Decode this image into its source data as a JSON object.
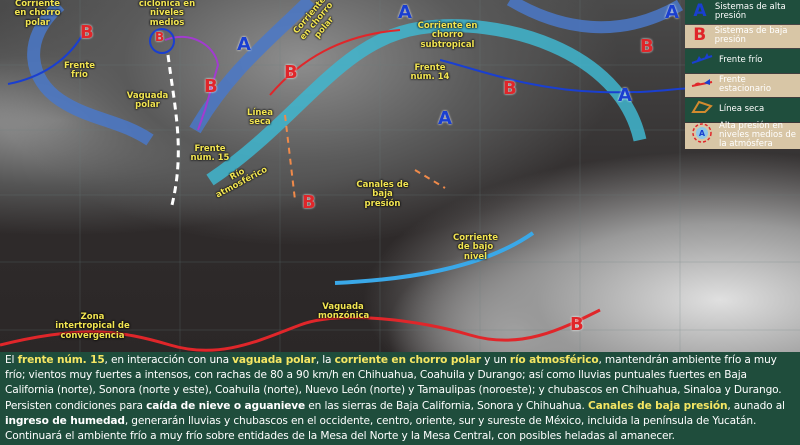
{
  "map_labels": {
    "corriente_chorro_polar_left": "Corriente en chorro polar",
    "frente_frio": "Frente frío",
    "vaguada_ciclonica": "ciclónica en niveles medios",
    "vaguada_polar": "Vaguada polar",
    "frente_15": "Frente núm. 15",
    "rio_atmosferico": "Río atmosférico",
    "linea_seca": "Línea seca",
    "corriente_chorro_polar_mid": "Corriente en chorro polar",
    "corriente_subtropical": "Corriente en chorro subtropical",
    "frente_14": "Frente núm. 14",
    "canales": "Canales de baja presión",
    "corriente_bajo_nivel": "Corriente de bajo nivel",
    "zona_intertropical": "Zona intertropical de convergencia",
    "vaguada_monzonica": "Vaguada monzónica",
    "high": "A",
    "low": "B"
  },
  "legend": [
    {
      "icon": "A",
      "label": "Sistemas de alta presión",
      "bg": "green"
    },
    {
      "icon": "B",
      "label": "Sistemas de baja presión",
      "bg": "tan"
    },
    {
      "icon": "cold-front",
      "label": "Frente frío",
      "bg": "green"
    },
    {
      "icon": "stationary-front",
      "label": "Frente estacionario",
      "bg": "tan"
    },
    {
      "icon": "dry-line",
      "label": "Línea seca",
      "bg": "green"
    },
    {
      "icon": "upper-high",
      "label": "Alta presión en niveles medios de la atmósfera",
      "bg": "tan",
      "symbol": "A"
    }
  ],
  "colors": {
    "high": "#1a3fd0",
    "low": "#e0262a",
    "panel": "#1f4d3c",
    "highlight": "#f5e663"
  },
  "summary": [
    {
      "t": "El ",
      "s": "n"
    },
    {
      "t": "frente núm. 15",
      "s": "hl"
    },
    {
      "t": ", en interacción con una ",
      "s": "n"
    },
    {
      "t": "vaguada polar",
      "s": "hl"
    },
    {
      "t": ", la ",
      "s": "n"
    },
    {
      "t": "corriente en chorro polar",
      "s": "hl"
    },
    {
      "t": " y un ",
      "s": "n"
    },
    {
      "t": "río atmosférico",
      "s": "hl"
    },
    {
      "t": ", mantendrán ambiente frío a muy frío; vientos muy fuertes a intensos, con rachas de 80 a 90 km/h en Chihuahua, Coahuila y Durango; así como lluvias puntuales fuertes en Baja California (norte), Sonora (norte y este), Coahuila (norte), Nuevo León (norte) y Tamaulipas (noroeste); y chubascos en Chihuahua, Sinaloa y Durango. Persisten condiciones para ",
      "s": "n"
    },
    {
      "t": "caída de nieve o aguanieve",
      "s": "bw"
    },
    {
      "t": " en las sierras de Baja California, Sonora y Chihuahua. ",
      "s": "n"
    },
    {
      "t": "Canales de baja presión",
      "s": "hl"
    },
    {
      "t": ", aunado al ",
      "s": "n"
    },
    {
      "t": "ingreso de humedad",
      "s": "bw"
    },
    {
      "t": ", generarán lluvias y chubascos en el occidente, centro, oriente, sur y sureste de México, incluida la península de Yucatán. Continuará el ambiente frío a muy frío sobre entidades de la Mesa del Norte y la Mesa Central, con posibles heladas al amanecer.",
      "s": "n"
    }
  ]
}
